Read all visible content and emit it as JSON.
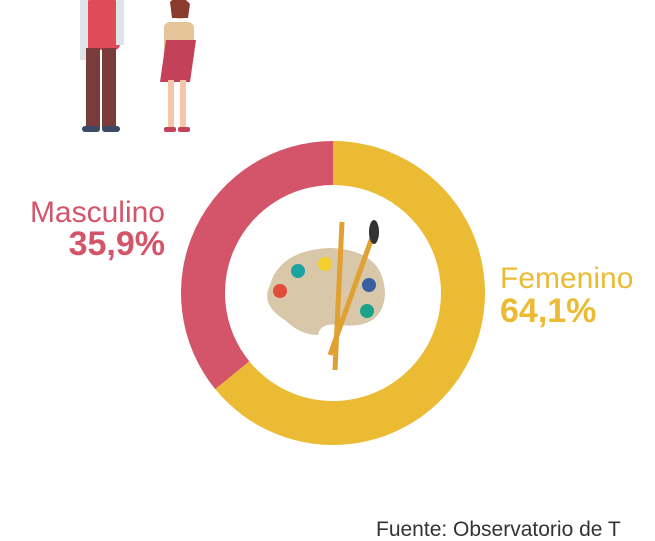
{
  "chart_data": {
    "type": "pie",
    "donut": true,
    "categories": [
      "Masculino",
      "Femenino"
    ],
    "values": [
      35.9,
      64.1
    ],
    "value_labels": [
      "35,9%",
      "64,1%"
    ],
    "colors": [
      "#d4546a",
      "#ebbb34"
    ],
    "source": "Fuente: Observatorio de T"
  }
}
